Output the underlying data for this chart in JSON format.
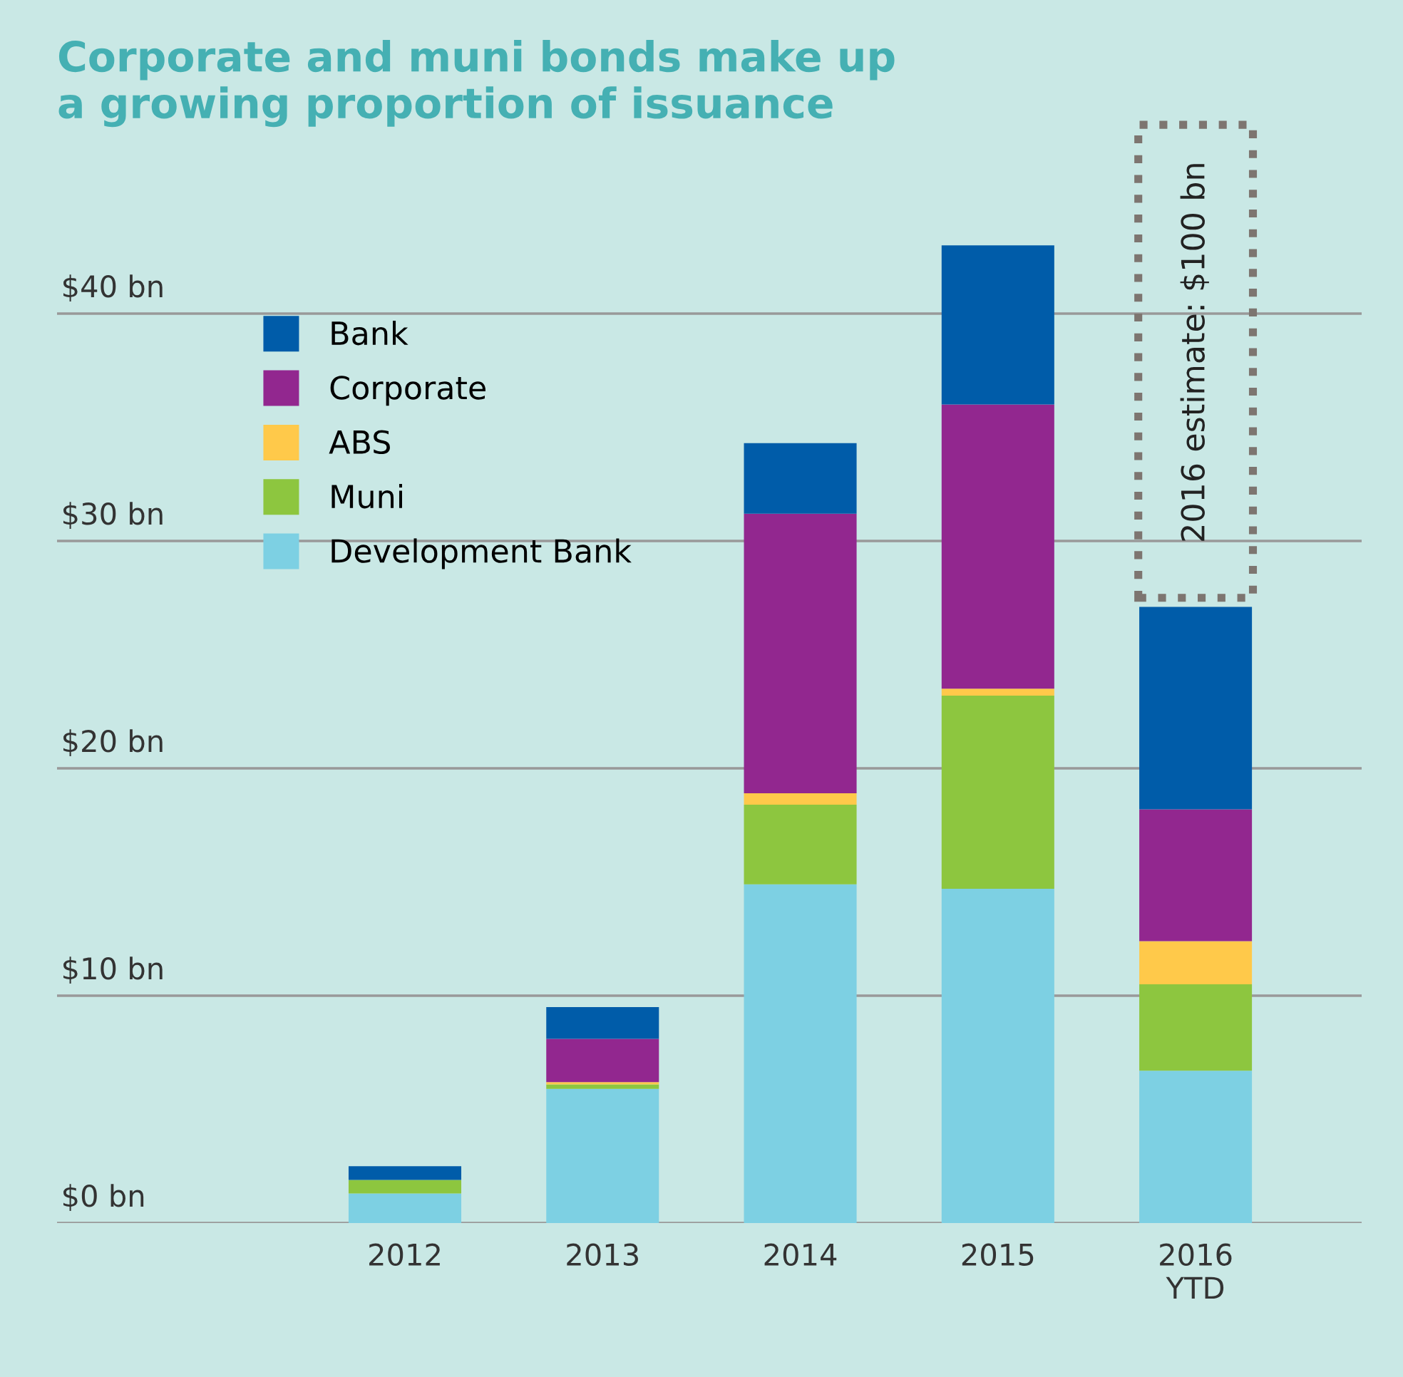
{
  "chart_data": {
    "type": "bar",
    "stacked": true,
    "title": "Corporate and muni bonds make up\na growing proportion of issuance",
    "categories": [
      "2012",
      "2013",
      "2014",
      "2015",
      "2016\nYTD"
    ],
    "series": [
      {
        "name": "Development Bank",
        "color": "#7dd0e3",
        "values": [
          1.3,
          5.9,
          14.9,
          14.7,
          6.7
        ]
      },
      {
        "name": "Muni",
        "color": "#8dc63f",
        "values": [
          0.6,
          0.2,
          3.5,
          8.5,
          3.8
        ]
      },
      {
        "name": "ABS",
        "color": "#ffc94a",
        "values": [
          0,
          0.1,
          0.5,
          0.3,
          1.9
        ]
      },
      {
        "name": "Corporate",
        "color": "#92278f",
        "values": [
          0,
          1.9,
          12.3,
          12.5,
          5.8
        ]
      },
      {
        "name": "Bank",
        "color": "#005ca9",
        "values": [
          0.6,
          1.4,
          3.1,
          7.0,
          8.9
        ]
      }
    ],
    "ylim": [
      0,
      48.5
    ],
    "yticks": [
      {
        "value": 0,
        "label": "$0 bn"
      },
      {
        "value": 10,
        "label": "$10 bn"
      },
      {
        "value": 20,
        "label": "$20 bn"
      },
      {
        "value": 30,
        "label": "$30 bn"
      },
      {
        "value": 40,
        "label": "$40 bn"
      }
    ],
    "grid": "y",
    "legend": "top left",
    "annotations": [
      "2016 estimate: $100 bn"
    ]
  }
}
